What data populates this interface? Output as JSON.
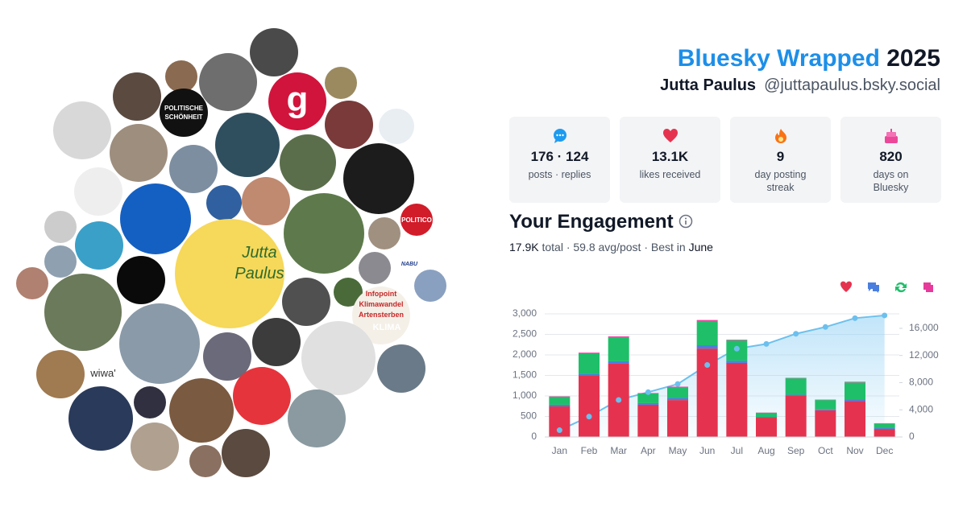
{
  "header": {
    "title": "Bluesky Wrapped",
    "year": "2025",
    "name": "Jutta Paulus",
    "handle": "@juttapaulus.bsky.social"
  },
  "stats": [
    {
      "value": "176 · 124",
      "label": "posts · replies"
    },
    {
      "value": "13.1K",
      "label": "likes received"
    },
    {
      "value": "9",
      "label": "day posting streak"
    },
    {
      "value": "820",
      "label": "days on Bluesky"
    }
  ],
  "engagement": {
    "title": "Your Engagement",
    "total": "17.9K",
    "middle": " total · 59.8 avg/post · Best in ",
    "best": "June"
  },
  "avatar_texts": [
    "POLITISCHE",
    "SCHÖNHEIT",
    "g",
    "POLITICO",
    "NABU",
    "Infopoint",
    "Klimawandel",
    "Artensterben",
    "KLIMA",
    "wiwa'",
    "Jutta",
    "Paulus"
  ],
  "chart_data": {
    "type": "bar",
    "stacked": true,
    "grid": true,
    "categories": [
      "Jan",
      "Feb",
      "Mar",
      "Apr",
      "May",
      "Jun",
      "Jul",
      "Aug",
      "Sep",
      "Oct",
      "Nov",
      "Dec"
    ],
    "series": [
      {
        "color": "#e5334f",
        "values": [
          745,
          1490,
          1785,
          785,
          900,
          2155,
          1805,
          470,
          1000,
          650,
          880,
          195
        ]
      },
      {
        "color": "#4a7fe0",
        "values": [
          40,
          40,
          60,
          40,
          50,
          80,
          50,
          20,
          30,
          30,
          40,
          20
        ]
      },
      {
        "color": "#1fbf6a",
        "values": [
          195,
          510,
          585,
          235,
          265,
          590,
          500,
          100,
          400,
          220,
          410,
          115
        ]
      },
      {
        "color": "#e63b9a",
        "values": [
          10,
          15,
          20,
          10,
          10,
          25,
          15,
          5,
          10,
          10,
          15,
          5
        ]
      },
      {
        "type": "line",
        "axis": "y2",
        "color": "#6cc0ee",
        "values": [
          1000,
          3000,
          5450,
          6600,
          7800,
          10600,
          13000,
          13700,
          15200,
          16200,
          17500,
          17900
        ]
      }
    ],
    "ylim": [
      0,
      3000
    ],
    "yticks": [
      0,
      500,
      {
        "value": 1000,
        "label": "1,000"
      },
      {
        "value": 1500,
        "label": "1,500"
      },
      {
        "value": 2000,
        "label": "2,000"
      },
      {
        "value": 2500,
        "label": "2,500"
      },
      {
        "value": 3000,
        "label": "3,000"
      }
    ],
    "y2lim": [
      0,
      18130
    ],
    "y2ticks": [
      0,
      {
        "value": 4000,
        "label": "4,000"
      },
      {
        "value": 8000,
        "label": "8,000"
      },
      {
        "value": 12000,
        "label": "12,000"
      },
      {
        "value": 16000,
        "label": "16,000"
      }
    ]
  }
}
